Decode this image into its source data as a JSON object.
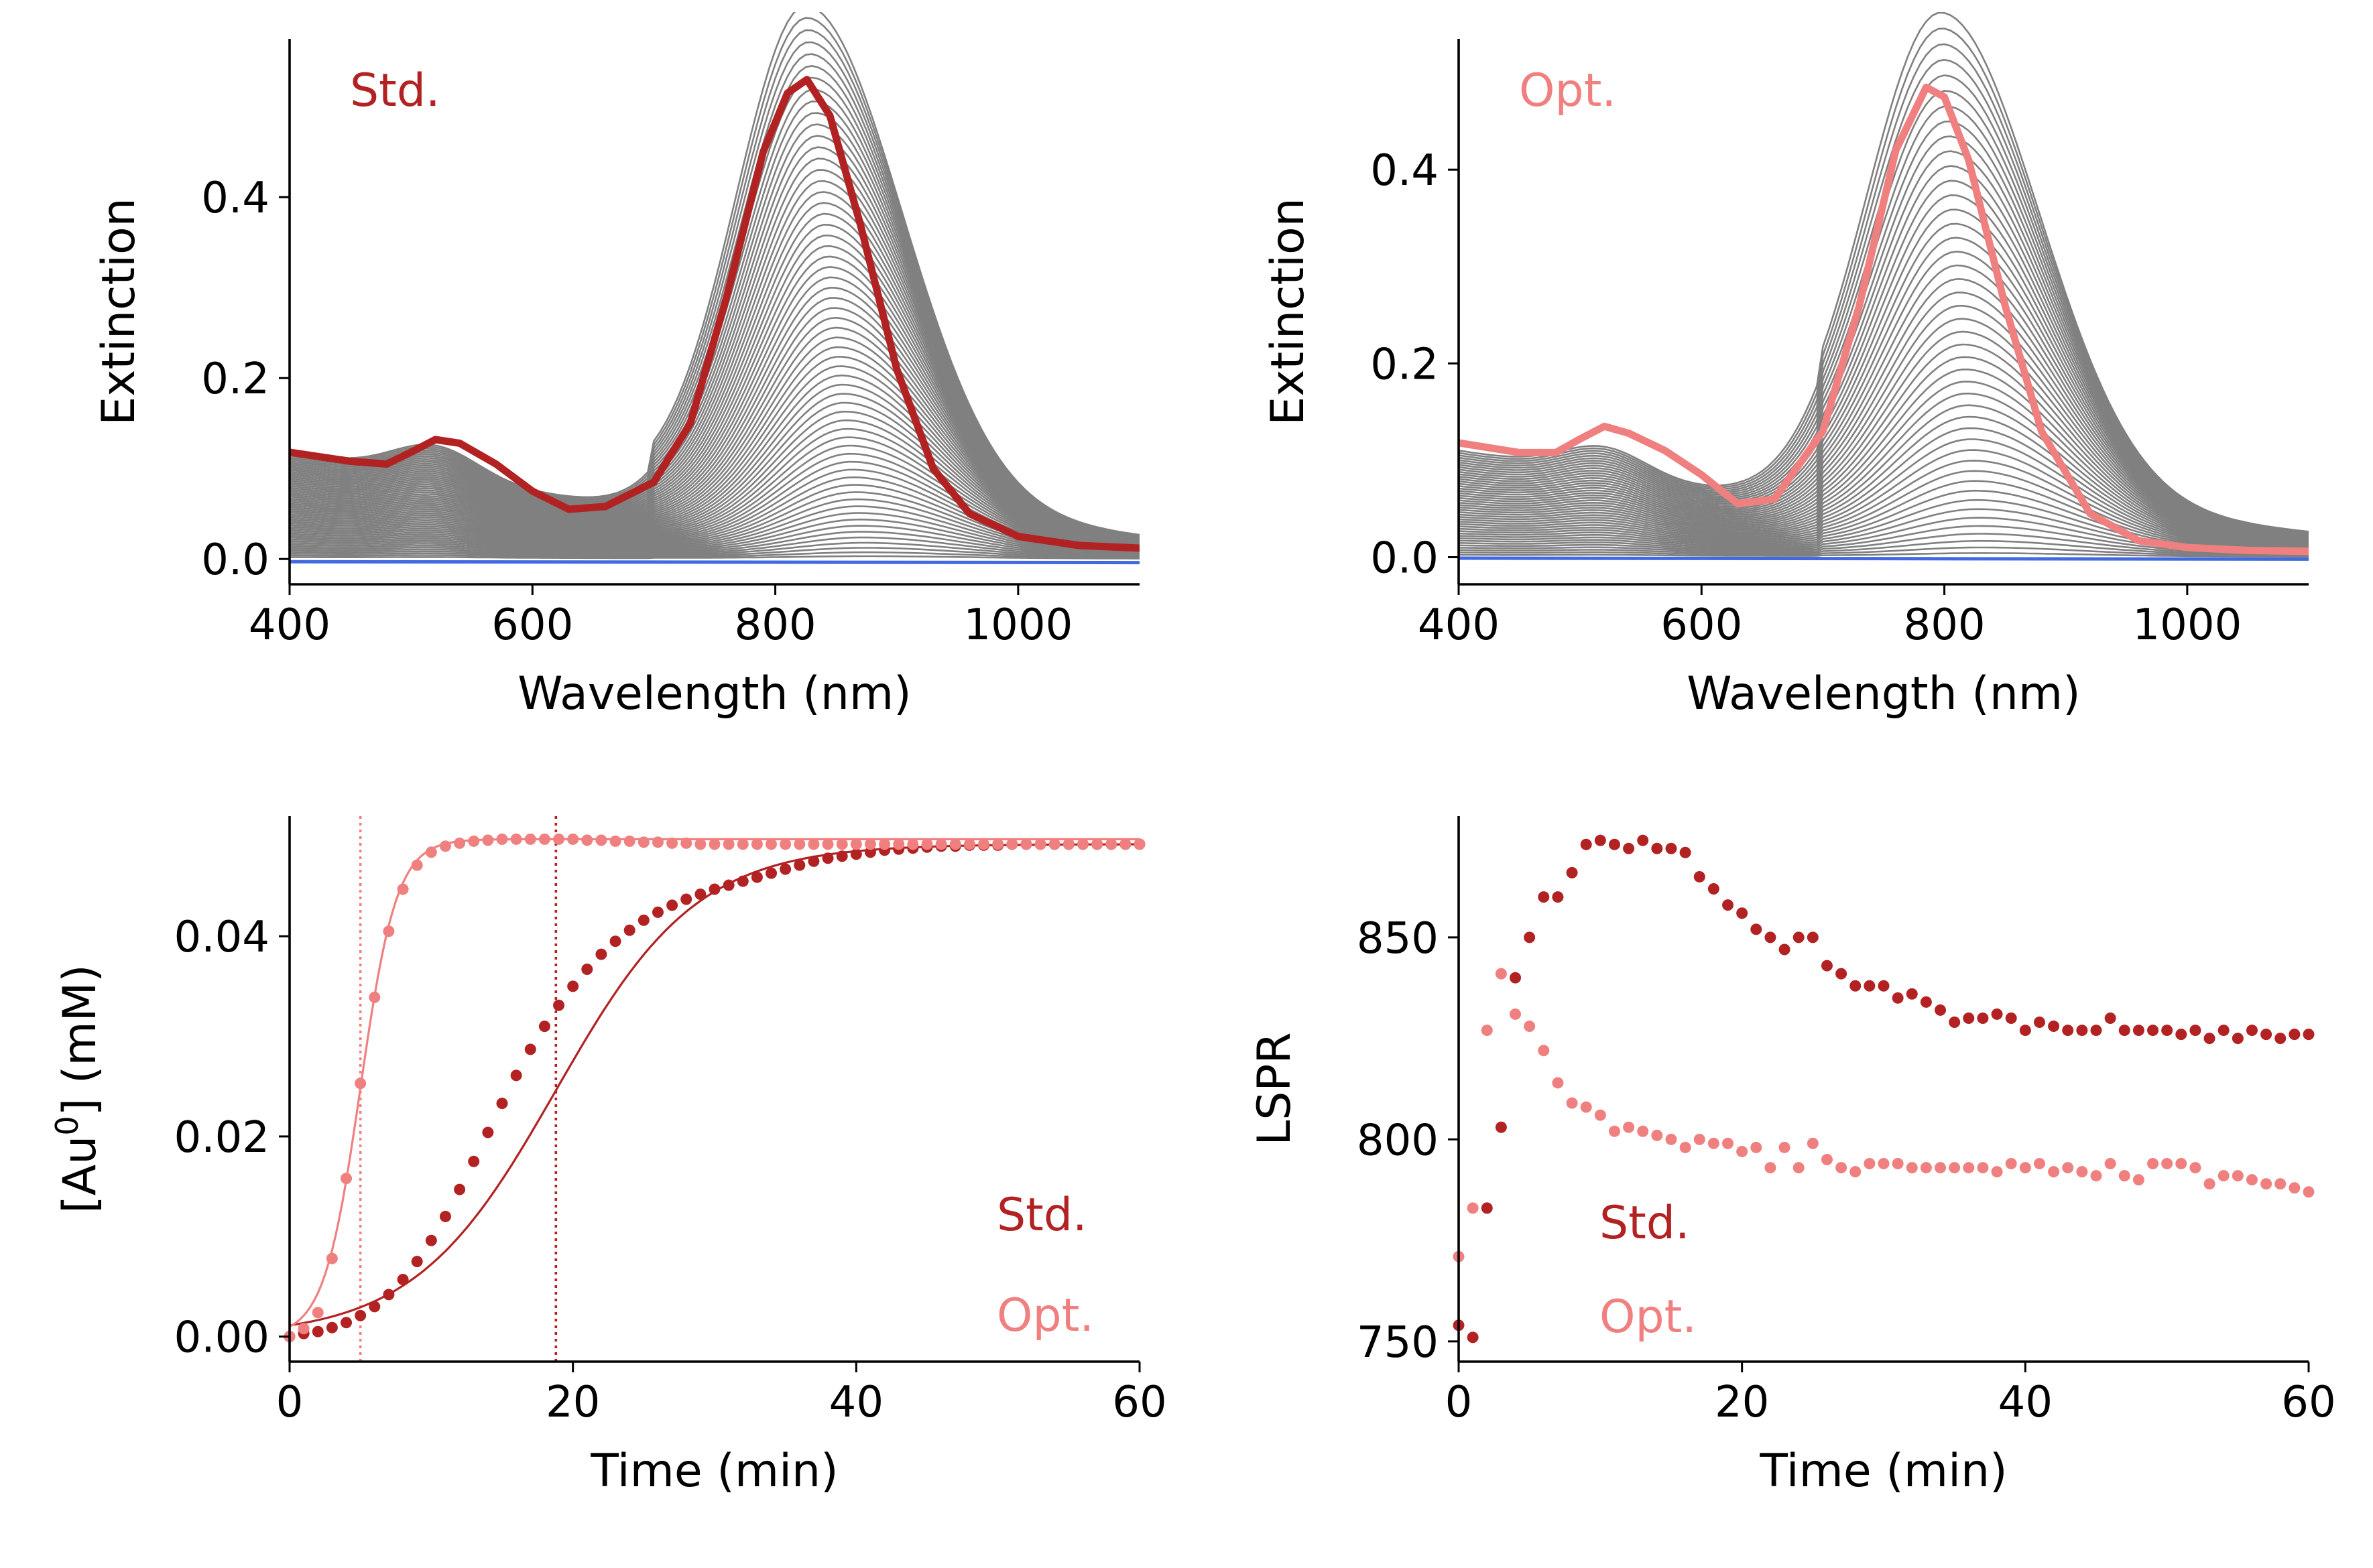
{
  "colors": {
    "std": "#b22222",
    "opt": "#f08080",
    "grey": "#808080",
    "blue": "#4169e1",
    "axis": "#000000"
  },
  "chart_data": [
    {
      "id": "A",
      "type": "line",
      "annotation": "Std.",
      "annotation_color": "std",
      "xlabel": "Wavelength (nm)",
      "ylabel": "Extinction",
      "xlim": [
        400,
        1100
      ],
      "ylim": [
        -0.028,
        0.575
      ],
      "xticks": [
        400,
        600,
        800,
        1000
      ],
      "xtick_labels": [
        "400",
        "600",
        "800",
        "1000"
      ],
      "yticks": [
        0.0,
        0.2,
        0.4
      ],
      "ytick_labels": [
        "0.0",
        "0.2",
        "0.4"
      ],
      "grid": false,
      "spectra_model": {
        "count": 60,
        "peak_nm_start": 878,
        "peak_nm_end": 826,
        "peak_height_max": 0.55,
        "width_left_nm": 58,
        "width_right_nm": 78,
        "bump_nm": 520,
        "bump_height_max": 0.034,
        "baseline_400": 0.118,
        "baseline_slope_per_nm": -0.00022,
        "color": "grey"
      },
      "highlight": {
        "name": "Std.",
        "color": "std",
        "x": [
          400,
          450,
          480,
          500,
          520,
          540,
          570,
          600,
          630,
          660,
          700,
          730,
          760,
          790,
          810,
          826,
          845,
          870,
          900,
          930,
          960,
          1000,
          1050,
          1100
        ],
        "y": [
          0.118,
          0.108,
          0.105,
          0.118,
          0.132,
          0.128,
          0.105,
          0.075,
          0.055,
          0.058,
          0.085,
          0.15,
          0.29,
          0.45,
          0.515,
          0.53,
          0.49,
          0.37,
          0.21,
          0.1,
          0.05,
          0.025,
          0.015,
          0.012
        ]
      },
      "blue_line": {
        "x": [
          400,
          1100
        ],
        "y": [
          -0.003,
          -0.004
        ],
        "color": "blue"
      }
    },
    {
      "id": "B",
      "type": "line",
      "annotation": "Opt.",
      "annotation_color": "opt",
      "xlabel": "Wavelength (nm)",
      "ylabel": "Extinction",
      "xlim": [
        400,
        1100
      ],
      "ylim": [
        -0.028,
        0.535
      ],
      "xticks": [
        400,
        600,
        800,
        1000
      ],
      "xtick_labels": [
        "400",
        "600",
        "800",
        "1000"
      ],
      "yticks": [
        0.0,
        0.2,
        0.4
      ],
      "ytick_labels": [
        "0.0",
        "0.2",
        "0.4"
      ],
      "grid": false,
      "spectra_model": {
        "count": 45,
        "peak_nm_start": 835,
        "peak_nm_end": 798,
        "peak_height_max": 0.5,
        "width_left_nm": 62,
        "width_right_nm": 80,
        "bump_nm": 520,
        "bump_height_max": 0.028,
        "baseline_400": 0.11,
        "baseline_slope_per_nm": -0.0002,
        "color": "grey"
      },
      "highlight": {
        "name": "Opt.",
        "color": "opt",
        "x": [
          400,
          450,
          480,
          500,
          520,
          540,
          570,
          600,
          630,
          660,
          700,
          730,
          760,
          785,
          800,
          820,
          850,
          880,
          920,
          960,
          1000,
          1050,
          1100
        ],
        "y": [
          0.118,
          0.108,
          0.108,
          0.122,
          0.135,
          0.128,
          0.11,
          0.085,
          0.055,
          0.06,
          0.13,
          0.26,
          0.42,
          0.485,
          0.475,
          0.41,
          0.26,
          0.13,
          0.045,
          0.017,
          0.01,
          0.007,
          0.006
        ]
      },
      "blue_line": {
        "x": [
          400,
          1100
        ],
        "y": [
          -0.001,
          -0.002
        ],
        "color": "blue"
      }
    },
    {
      "id": "C",
      "type": "scatter",
      "xlabel": "Time (min)",
      "ylabel_main": "[Au",
      "ylabel_sup": "0",
      "ylabel_tail": "] (mM)",
      "xlim": [
        0,
        60
      ],
      "ylim": [
        -0.0025,
        0.052
      ],
      "xticks": [
        0,
        20,
        40,
        60
      ],
      "xtick_labels": [
        "0",
        "20",
        "40",
        "60"
      ],
      "yticks": [
        0.0,
        0.02,
        0.04
      ],
      "ytick_labels": [
        "0.00",
        "0.02",
        "0.04"
      ],
      "grid": false,
      "legend": [
        {
          "label": "Std.",
          "color": "std"
        },
        {
          "label": "Opt.",
          "color": "opt"
        }
      ],
      "vlines": [
        {
          "x": 5,
          "color": "opt"
        },
        {
          "x": 18.8,
          "color": "std"
        }
      ],
      "series": [
        {
          "name": "Std.",
          "color": "std",
          "point_x": [
            0,
            1,
            2,
            3,
            4,
            5,
            6,
            7,
            8,
            9,
            10,
            11,
            12,
            13,
            14,
            15,
            16,
            17,
            18,
            19,
            20,
            21,
            22,
            23,
            24,
            25,
            26,
            27,
            28,
            29,
            30,
            31,
            32,
            33,
            34,
            35,
            36,
            37,
            38,
            39,
            40,
            41,
            42,
            43,
            44,
            45,
            46,
            47,
            48,
            49,
            50,
            51,
            52,
            53,
            54,
            55,
            56,
            57,
            58,
            59,
            60
          ],
          "point_y": [
            0.0,
            0.0003,
            0.0005,
            0.0009,
            0.0014,
            0.0021,
            0.003,
            0.0042,
            0.0057,
            0.0075,
            0.0096,
            0.012,
            0.0147,
            0.0175,
            0.0204,
            0.0233,
            0.0261,
            0.0287,
            0.031,
            0.0331,
            0.035,
            0.0367,
            0.0382,
            0.0395,
            0.0406,
            0.0416,
            0.0424,
            0.0431,
            0.0437,
            0.0442,
            0.0447,
            0.0451,
            0.0455,
            0.0459,
            0.0463,
            0.0467,
            0.0471,
            0.0475,
            0.0478,
            0.048,
            0.0482,
            0.0484,
            0.0486,
            0.0487,
            0.0488,
            0.0489,
            0.049,
            0.049,
            0.0491,
            0.0491,
            0.0491,
            0.0492,
            0.0492,
            0.0492,
            0.0492,
            0.0492,
            0.0492,
            0.0492,
            0.0492,
            0.0492,
            0.0492
          ],
          "fit_model": {
            "kind": "logistic",
            "amplitude": 0.0492,
            "midpoint": 18.8,
            "rate": 0.2,
            "ymin_clip": 0.0
          }
        },
        {
          "name": "Opt.",
          "color": "opt",
          "point_x": [
            0,
            1,
            2,
            3,
            4,
            5,
            6,
            7,
            8,
            9,
            10,
            11,
            12,
            13,
            14,
            15,
            16,
            17,
            18,
            19,
            20,
            21,
            22,
            23,
            24,
            25,
            26,
            27,
            28,
            29,
            30,
            31,
            32,
            33,
            34,
            35,
            36,
            37,
            38,
            39,
            40,
            41,
            42,
            43,
            44,
            45,
            46,
            47,
            48,
            49,
            50,
            51,
            52,
            53,
            54,
            55,
            56,
            57,
            58,
            59,
            60
          ],
          "point_y": [
            0.0,
            0.0008,
            0.0024,
            0.0078,
            0.0158,
            0.0253,
            0.0339,
            0.0405,
            0.0447,
            0.0471,
            0.0484,
            0.049,
            0.0493,
            0.0495,
            0.0496,
            0.0497,
            0.0497,
            0.0497,
            0.0497,
            0.0497,
            0.0497,
            0.0496,
            0.0496,
            0.0495,
            0.0495,
            0.0494,
            0.0494,
            0.0493,
            0.0493,
            0.0492,
            0.0492,
            0.0492,
            0.0492,
            0.0492,
            0.0492,
            0.0492,
            0.0492,
            0.0492,
            0.0492,
            0.0492,
            0.0492,
            0.0492,
            0.0492,
            0.0492,
            0.0492,
            0.0492,
            0.0492,
            0.0492,
            0.0492,
            0.0492,
            0.0492,
            0.0492,
            0.0492,
            0.0492,
            0.0492,
            0.0492,
            0.0492,
            0.0492,
            0.0492,
            0.0492,
            0.0492
          ],
          "fit_model": {
            "kind": "logistic",
            "amplitude": 0.0497,
            "midpoint": 5.0,
            "rate": 0.78,
            "ymin_clip": 0.0
          }
        }
      ]
    },
    {
      "id": "D",
      "type": "scatter",
      "xlabel": "Time (min)",
      "ylabel": "LSPR",
      "xlim": [
        0,
        60
      ],
      "ylim": [
        745,
        880
      ],
      "xticks": [
        0,
        20,
        40,
        60
      ],
      "xtick_labels": [
        "0",
        "20",
        "40",
        "60"
      ],
      "yticks": [
        750,
        800,
        850
      ],
      "ytick_labels": [
        "750",
        "800",
        "850"
      ],
      "grid": false,
      "legend": [
        {
          "label": "Std.",
          "color": "std"
        },
        {
          "label": "Opt.",
          "color": "opt"
        }
      ],
      "series": [
        {
          "name": "Std.",
          "color": "std",
          "x": [
            0,
            1,
            2,
            3,
            4,
            5,
            6,
            7,
            8,
            9,
            10,
            11,
            12,
            13,
            14,
            15,
            16,
            17,
            18,
            19,
            20,
            21,
            22,
            23,
            24,
            25,
            26,
            27,
            28,
            29,
            30,
            31,
            32,
            33,
            34,
            35,
            36,
            37,
            38,
            39,
            40,
            41,
            42,
            43,
            44,
            45,
            46,
            47,
            48,
            49,
            50,
            51,
            52,
            53,
            54,
            55,
            56,
            57,
            58,
            59,
            60
          ],
          "y": [
            754,
            751,
            783,
            803,
            840,
            850,
            860,
            860,
            866,
            873,
            874,
            873,
            872,
            874,
            872,
            872,
            871,
            865,
            862,
            858,
            856,
            852,
            850,
            847,
            850,
            850,
            843,
            841,
            838,
            838,
            838,
            835,
            836,
            834,
            832,
            829,
            830,
            830,
            831,
            830,
            827,
            829,
            828,
            827,
            827,
            827,
            830,
            827,
            827,
            827,
            827,
            826,
            827,
            825,
            827,
            825,
            827,
            826,
            825,
            826,
            826
          ]
        },
        {
          "name": "Opt.",
          "color": "opt",
          "x": [
            0,
            1,
            2,
            3,
            4,
            5,
            6,
            7,
            8,
            9,
            10,
            11,
            12,
            13,
            14,
            15,
            16,
            17,
            18,
            19,
            20,
            21,
            22,
            23,
            24,
            25,
            26,
            27,
            28,
            29,
            30,
            31,
            32,
            33,
            34,
            35,
            36,
            37,
            38,
            39,
            40,
            41,
            42,
            43,
            44,
            45,
            46,
            47,
            48,
            49,
            50,
            51,
            52,
            53,
            54,
            55,
            56,
            57,
            58,
            59,
            60
          ],
          "y": [
            771,
            783,
            827,
            841,
            831,
            828,
            822,
            814,
            809,
            808,
            806,
            802,
            803,
            802,
            801,
            800,
            798,
            800,
            799,
            799,
            797,
            798,
            793,
            798,
            793,
            799,
            795,
            793,
            792,
            794,
            794,
            794,
            793,
            793,
            793,
            793,
            793,
            793,
            792,
            794,
            793,
            794,
            792,
            793,
            792,
            791,
            794,
            791,
            790,
            794,
            794,
            794,
            793,
            789,
            791,
            791,
            790,
            789,
            789,
            788,
            787
          ]
        }
      ]
    }
  ]
}
